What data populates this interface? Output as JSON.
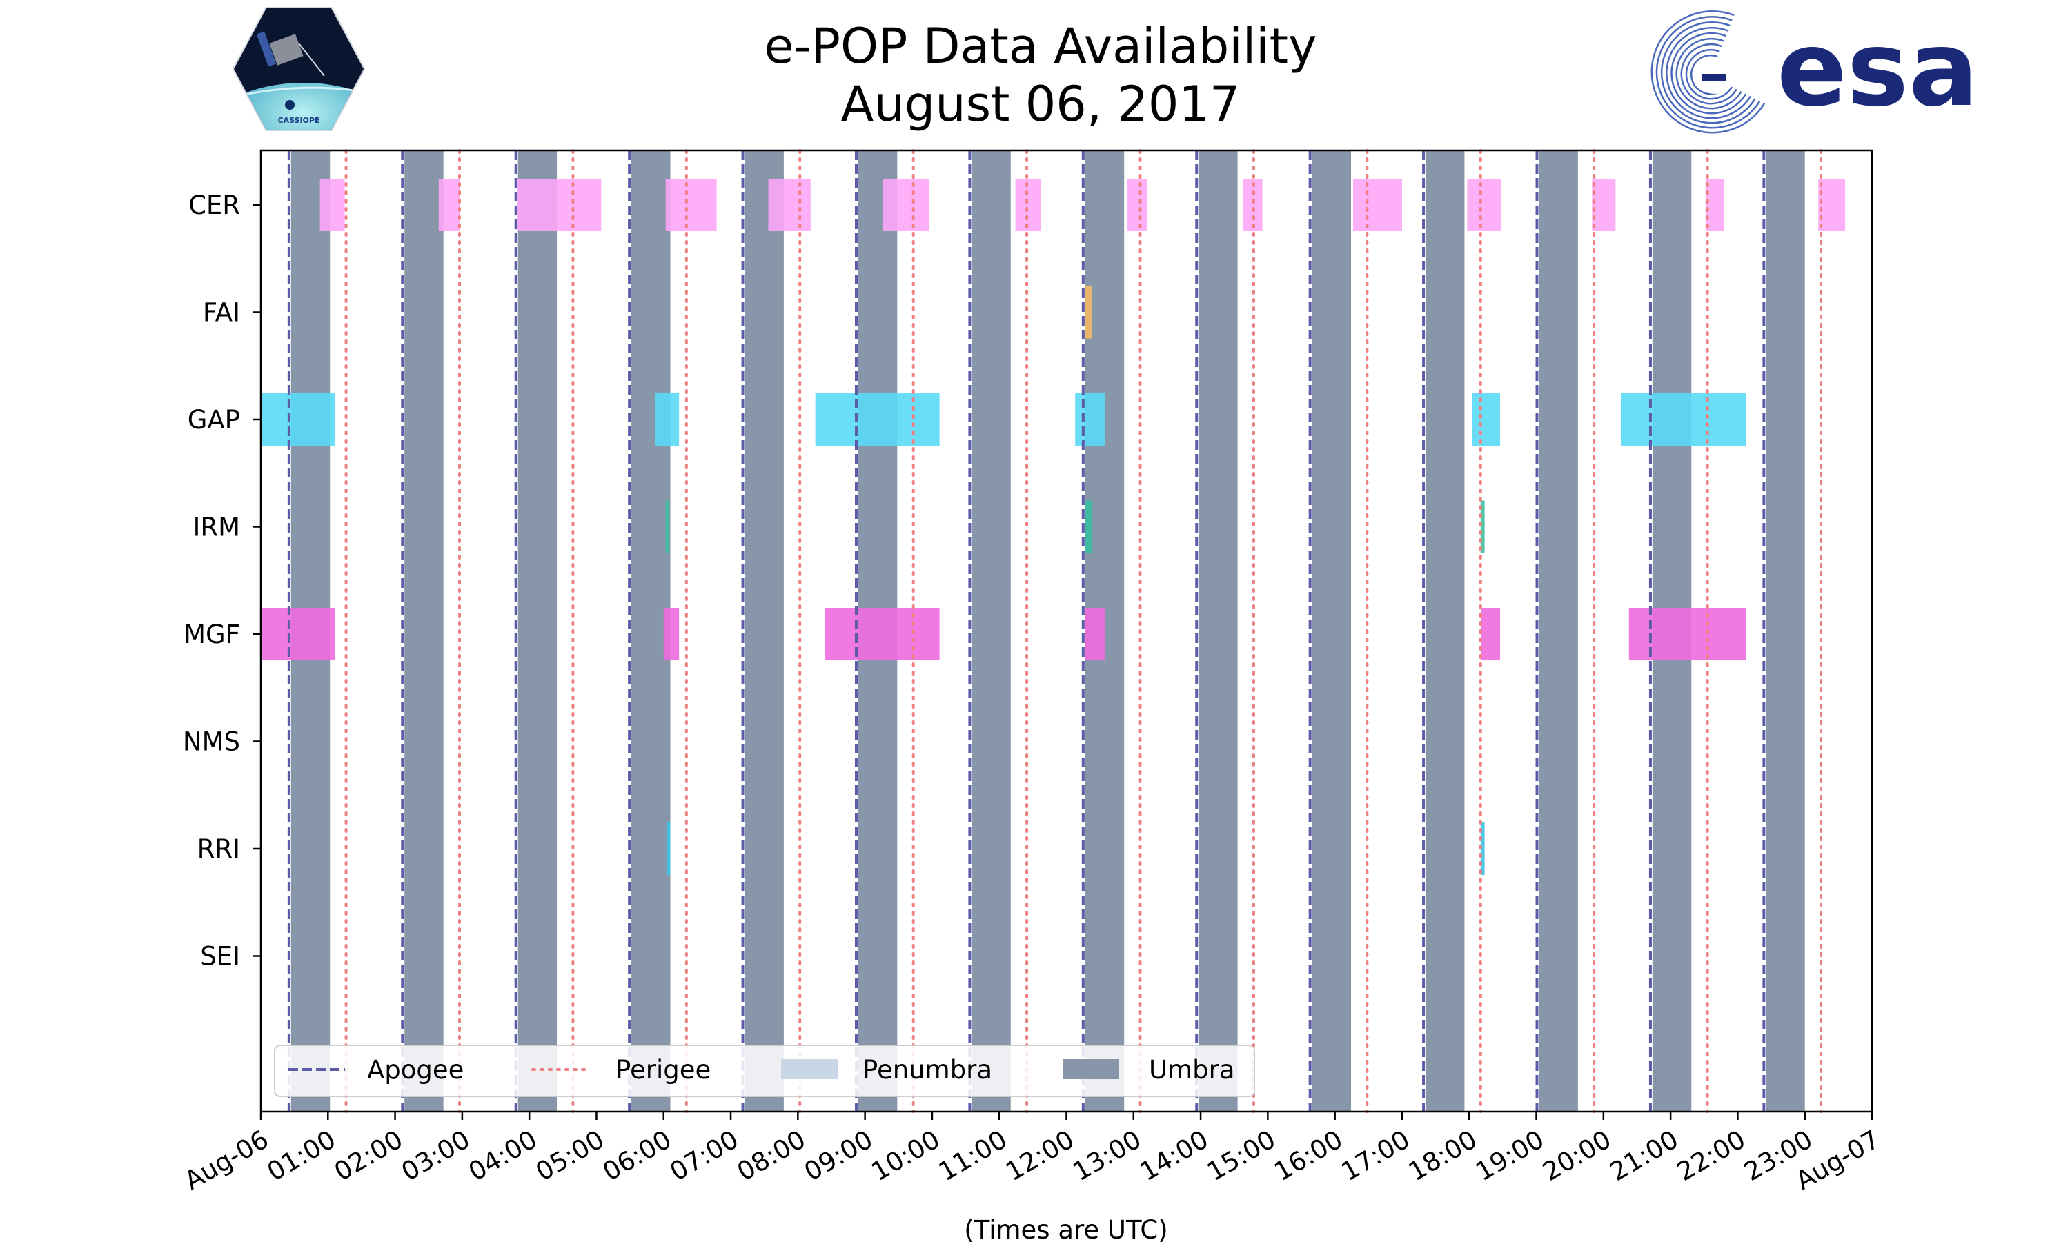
{
  "logos": {
    "left": {
      "caption": "CASSIOPE"
    },
    "right": {
      "text": "esa"
    }
  },
  "colors": {
    "apogee": "#5b5ba8",
    "perigee": "#f08080",
    "umbra": "#8796a8",
    "penumbra": "#c8d6e6",
    "CER": "#fda6f7",
    "FAI": "#f3b966",
    "GAP": "#5ad9f6",
    "IRM": "#3cbfa1",
    "MGF": "#ef6cdf",
    "RRI": "#3ec2e1"
  },
  "chart_data": {
    "type": "timeline",
    "title": [
      "e-POP Data Availability",
      "August 06, 2017"
    ],
    "xlabel": "(Times are UTC)",
    "x_unit": "hours since 2017-08-06 00:00 UTC",
    "xlim": [
      0,
      24
    ],
    "x_ticks": [
      {
        "value": 0,
        "label": "Aug-06"
      },
      {
        "value": 1,
        "label": "01:00"
      },
      {
        "value": 2,
        "label": "02:00"
      },
      {
        "value": 3,
        "label": "03:00"
      },
      {
        "value": 4,
        "label": "04:00"
      },
      {
        "value": 5,
        "label": "05:00"
      },
      {
        "value": 6,
        "label": "06:00"
      },
      {
        "value": 7,
        "label": "07:00"
      },
      {
        "value": 8,
        "label": "08:00"
      },
      {
        "value": 9,
        "label": "09:00"
      },
      {
        "value": 10,
        "label": "10:00"
      },
      {
        "value": 11,
        "label": "11:00"
      },
      {
        "value": 12,
        "label": "12:00"
      },
      {
        "value": 13,
        "label": "13:00"
      },
      {
        "value": 14,
        "label": "14:00"
      },
      {
        "value": 15,
        "label": "15:00"
      },
      {
        "value": 16,
        "label": "16:00"
      },
      {
        "value": 17,
        "label": "17:00"
      },
      {
        "value": 18,
        "label": "18:00"
      },
      {
        "value": 19,
        "label": "19:00"
      },
      {
        "value": 20,
        "label": "20:00"
      },
      {
        "value": 21,
        "label": "21:00"
      },
      {
        "value": 22,
        "label": "22:00"
      },
      {
        "value": 23,
        "label": "23:00"
      },
      {
        "value": 24,
        "label": "Aug-07"
      }
    ],
    "instruments": [
      "CER",
      "FAI",
      "GAP",
      "IRM",
      "MGF",
      "NMS",
      "RRI",
      "SEI"
    ],
    "apogee": [
      0.42,
      2.11,
      3.8,
      5.49,
      7.18,
      8.87,
      10.56,
      12.25,
      13.94,
      15.63,
      17.32,
      19.01,
      20.7,
      22.39
    ],
    "perigee": [
      1.27,
      2.96,
      4.65,
      6.34,
      8.03,
      9.72,
      11.41,
      13.1,
      14.79,
      16.48,
      18.17,
      19.86,
      21.55,
      23.24
    ],
    "umbra": [
      [
        0.45,
        1.03
      ],
      [
        2.14,
        2.72
      ],
      [
        3.83,
        4.41
      ],
      [
        5.52,
        6.1
      ],
      [
        7.21,
        7.79
      ],
      [
        8.9,
        9.48
      ],
      [
        10.59,
        11.17
      ],
      [
        12.28,
        12.86
      ],
      [
        13.97,
        14.55
      ],
      [
        15.66,
        16.24
      ],
      [
        17.35,
        17.93
      ],
      [
        19.04,
        19.62
      ],
      [
        20.73,
        21.31
      ],
      [
        22.42,
        23.0
      ]
    ],
    "availability": {
      "CER": [
        [
          0.88,
          1.25
        ],
        [
          2.65,
          2.97
        ],
        [
          3.82,
          5.07
        ],
        [
          6.03,
          6.79
        ],
        [
          7.56,
          8.19
        ],
        [
          9.27,
          9.96
        ],
        [
          11.24,
          11.62
        ],
        [
          12.91,
          13.2
        ],
        [
          14.63,
          14.92
        ],
        [
          16.27,
          17.0
        ],
        [
          17.97,
          18.47
        ],
        [
          19.83,
          20.18
        ],
        [
          21.52,
          21.8
        ],
        [
          23.2,
          23.6
        ]
      ],
      "FAI": [
        [
          12.27,
          12.38
        ]
      ],
      "GAP": [
        [
          0.0,
          1.1
        ],
        [
          5.87,
          6.23
        ],
        [
          8.26,
          10.11
        ],
        [
          12.13,
          12.58
        ],
        [
          18.04,
          18.46
        ],
        [
          20.26,
          22.12
        ]
      ],
      "IRM": [
        [
          6.03,
          6.08
        ],
        [
          12.28,
          12.38
        ],
        [
          18.17,
          18.23
        ]
      ],
      "MGF": [
        [
          0.0,
          1.1
        ],
        [
          6.0,
          6.23
        ],
        [
          8.4,
          10.11
        ],
        [
          12.28,
          12.58
        ],
        [
          18.18,
          18.46
        ],
        [
          20.38,
          22.12
        ]
      ],
      "NMS": [],
      "RRI": [
        [
          6.05,
          6.1
        ],
        [
          18.17,
          18.23
        ]
      ],
      "SEI": []
    },
    "legend": {
      "position": "lower-left",
      "entries": [
        {
          "key": "apogee",
          "label": "Apogee"
        },
        {
          "key": "perigee",
          "label": "Perigee"
        },
        {
          "key": "penumbra",
          "label": "Penumbra"
        },
        {
          "key": "umbra",
          "label": "Umbra"
        }
      ]
    }
  }
}
